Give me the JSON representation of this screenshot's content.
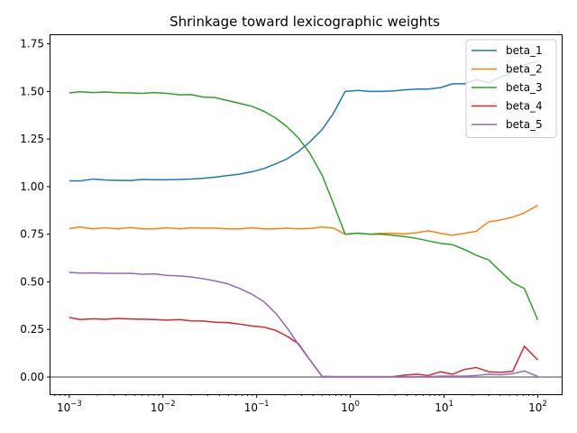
{
  "chart_data": {
    "type": "line",
    "title": "Shrinkage toward lexicographic weights",
    "xlabel": "",
    "ylabel": "",
    "xscale": "log",
    "xlim": [
      0.00063,
      180
    ],
    "ylim": [
      -0.09,
      1.8
    ],
    "x_ticks": [
      {
        "value": 0.001,
        "base": "10",
        "exp": "−3"
      },
      {
        "value": 0.01,
        "base": "10",
        "exp": "−2"
      },
      {
        "value": 0.1,
        "base": "10",
        "exp": "−1"
      },
      {
        "value": 1,
        "base": "10",
        "exp": "0"
      },
      {
        "value": 10,
        "base": "10",
        "exp": "1"
      },
      {
        "value": 100,
        "base": "10",
        "exp": "2"
      }
    ],
    "y_ticks": [
      {
        "value": 0.0,
        "label": "0.00"
      },
      {
        "value": 0.25,
        "label": "0.25"
      },
      {
        "value": 0.5,
        "label": "0.50"
      },
      {
        "value": 0.75,
        "label": "0.75"
      },
      {
        "value": 1.0,
        "label": "1.00"
      },
      {
        "value": 1.25,
        "label": "1.25"
      },
      {
        "value": 1.5,
        "label": "1.50"
      },
      {
        "value": 1.75,
        "label": "1.75"
      }
    ],
    "reference_line": {
      "y": 0,
      "color": "#808080"
    },
    "legend": "top-right",
    "grid": false,
    "x": [
      0.001,
      0.0013,
      0.0018,
      0.0024,
      0.0033,
      0.0045,
      0.006,
      0.0081,
      0.011,
      0.015,
      0.02,
      0.027,
      0.036,
      0.049,
      0.066,
      0.089,
      0.12,
      0.16,
      0.21,
      0.28,
      0.37,
      0.5,
      0.66,
      0.88,
      1.2,
      1.6,
      2.1,
      2.8,
      3.8,
      5.1,
      6.8,
      9.2,
      12.3,
      16.5,
      22,
      30,
      40,
      54,
      72,
      100
    ],
    "series": [
      {
        "name": "beta_1",
        "color": "#1f77b4",
        "values": [
          1.03,
          1.03,
          1.04,
          1.035,
          1.033,
          1.032,
          1.038,
          1.036,
          1.036,
          1.038,
          1.04,
          1.044,
          1.05,
          1.058,
          1.066,
          1.078,
          1.095,
          1.12,
          1.145,
          1.185,
          1.235,
          1.3,
          1.385,
          1.5,
          1.505,
          1.5,
          1.5,
          1.502,
          1.508,
          1.512,
          1.512,
          1.52,
          1.54,
          1.54,
          1.562,
          1.545,
          1.575,
          1.6,
          1.64,
          1.66
        ]
      },
      {
        "name": "beta_2",
        "color": "#ff7f0e",
        "values": [
          0.78,
          0.788,
          0.778,
          0.784,
          0.778,
          0.786,
          0.778,
          0.778,
          0.784,
          0.778,
          0.784,
          0.782,
          0.782,
          0.778,
          0.778,
          0.784,
          0.778,
          0.778,
          0.782,
          0.778,
          0.78,
          0.788,
          0.782,
          0.75,
          0.755,
          0.75,
          0.755,
          0.755,
          0.752,
          0.758,
          0.768,
          0.755,
          0.745,
          0.755,
          0.765,
          0.815,
          0.825,
          0.84,
          0.862,
          0.902
        ]
      },
      {
        "name": "beta_3",
        "color": "#2ca02c",
        "values": [
          1.492,
          1.498,
          1.494,
          1.497,
          1.493,
          1.492,
          1.49,
          1.494,
          1.49,
          1.482,
          1.483,
          1.47,
          1.468,
          1.452,
          1.437,
          1.422,
          1.395,
          1.36,
          1.315,
          1.255,
          1.175,
          1.06,
          0.91,
          0.75,
          0.756,
          0.75,
          0.75,
          0.745,
          0.738,
          0.728,
          0.715,
          0.702,
          0.695,
          0.67,
          0.64,
          0.615,
          0.555,
          0.495,
          0.465,
          0.3
        ]
      },
      {
        "name": "beta_4",
        "color": "#d62728",
        "values": [
          0.313,
          0.302,
          0.306,
          0.303,
          0.308,
          0.305,
          0.304,
          0.302,
          0.299,
          0.302,
          0.295,
          0.294,
          0.288,
          0.286,
          0.278,
          0.268,
          0.262,
          0.245,
          0.215,
          0.175,
          0.09,
          0.003,
          0.002,
          0.002,
          0.002,
          0.002,
          0.002,
          0.002,
          0.01,
          0.015,
          0.008,
          0.028,
          0.015,
          0.04,
          0.05,
          0.028,
          0.025,
          0.03,
          0.162,
          0.09
        ]
      },
      {
        "name": "beta_5",
        "color": "#9467bd",
        "values": [
          0.55,
          0.546,
          0.547,
          0.545,
          0.545,
          0.545,
          0.54,
          0.542,
          0.534,
          0.531,
          0.526,
          0.516,
          0.505,
          0.49,
          0.465,
          0.435,
          0.395,
          0.335,
          0.26,
          0.17,
          0.09,
          0.004,
          0.002,
          0.002,
          0.002,
          0.002,
          0.002,
          0.002,
          0.002,
          0.002,
          0.002,
          0.005,
          0.005,
          0.005,
          0.008,
          0.015,
          0.012,
          0.018,
          0.032,
          0.003
        ]
      }
    ]
  }
}
